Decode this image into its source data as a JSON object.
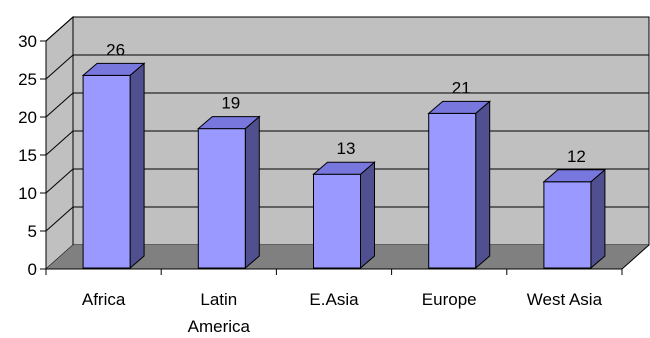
{
  "chart_data": {
    "type": "bar",
    "title": "",
    "xlabel": "",
    "ylabel": "",
    "categories": [
      [
        "Africa"
      ],
      [
        "Latin",
        "America"
      ],
      [
        "E.Asia"
      ],
      [
        "Europe"
      ],
      [
        "West Asia"
      ]
    ],
    "values": [
      26,
      19,
      13,
      21,
      12
    ],
    "ylim": [
      0,
      30
    ],
    "yticks": [
      "0",
      "5",
      "10",
      "15",
      "20",
      "25",
      "30"
    ],
    "grid": true,
    "legend": "none",
    "style": "3d-column",
    "colors": {
      "bar_front": "#9999ff",
      "bar_top": "#7777dd",
      "bar_side": "#505090",
      "wall": "#c0c0c0",
      "floor": "#808080"
    }
  }
}
